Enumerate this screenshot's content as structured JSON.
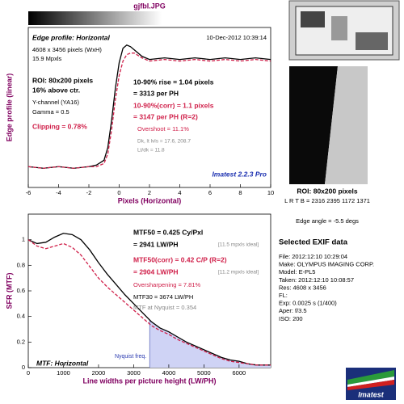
{
  "header": {
    "file": "gjfbl.JPG"
  },
  "chart_data": [
    {
      "type": "line",
      "ylabel": "Edge profile (linear)",
      "xlabel": "Pixels (Horizontal)",
      "x": [
        -6,
        -5,
        -4,
        -3,
        -2,
        -1.5,
        -1,
        -0.75,
        -0.5,
        -0.25,
        0,
        0.25,
        0.5,
        0.75,
        1,
        1.5,
        2,
        3,
        4,
        5,
        6,
        7,
        8,
        9,
        10
      ],
      "series": [
        {
          "color": "#000000",
          "style": "solid",
          "values": [
            0.13,
            0.12,
            0.13,
            0.12,
            0.13,
            0.14,
            0.17,
            0.25,
            0.42,
            0.62,
            0.78,
            0.87,
            0.89,
            0.88,
            0.86,
            0.82,
            0.8,
            0.81,
            0.8,
            0.81,
            0.8,
            0.81,
            0.8,
            0.81,
            0.8
          ]
        },
        {
          "color": "#d0204a",
          "style": "dashed",
          "values": [
            0.13,
            0.12,
            0.13,
            0.12,
            0.13,
            0.13,
            0.15,
            0.21,
            0.36,
            0.55,
            0.7,
            0.79,
            0.83,
            0.84,
            0.84,
            0.81,
            0.79,
            0.8,
            0.79,
            0.8,
            0.79,
            0.8,
            0.79,
            0.8,
            0.79
          ]
        }
      ],
      "xlim": [
        -6,
        10
      ],
      "xticks": [
        -6,
        -4,
        -2,
        0,
        2,
        4,
        6,
        8,
        10
      ],
      "ylim": [
        0,
        1
      ]
    },
    {
      "type": "line",
      "ylabel": "SFR (MTF)",
      "xlabel": "Line widths per picture height (LW/PH)",
      "x": [
        0,
        250,
        500,
        750,
        1000,
        1250,
        1500,
        1750,
        2000,
        2250,
        2500,
        2750,
        3000,
        3250,
        3500,
        3750,
        4000,
        4250,
        4500,
        4750,
        5000,
        5250,
        5500,
        5750,
        6000,
        6250,
        6500,
        6900
      ],
      "series": [
        {
          "color": "#000000",
          "style": "solid",
          "values": [
            1.0,
            0.97,
            0.98,
            1.02,
            1.05,
            1.04,
            1.0,
            0.92,
            0.82,
            0.73,
            0.65,
            0.57,
            0.5,
            0.43,
            0.36,
            0.31,
            0.28,
            0.24,
            0.2,
            0.17,
            0.14,
            0.11,
            0.08,
            0.06,
            0.05,
            0.03,
            0.02,
            0.02
          ]
        },
        {
          "color": "#d0204a",
          "style": "dashed",
          "values": [
            1.0,
            0.95,
            0.93,
            0.95,
            0.97,
            0.94,
            0.88,
            0.79,
            0.7,
            0.63,
            0.57,
            0.51,
            0.45,
            0.39,
            0.33,
            0.29,
            0.26,
            0.22,
            0.19,
            0.16,
            0.13,
            0.1,
            0.07,
            0.05,
            0.04,
            0.03,
            0.02,
            0.02
          ]
        }
      ],
      "xlim": [
        0,
        6900
      ],
      "xticks": [
        0,
        1000,
        2000,
        3000,
        4000,
        5000,
        6000
      ],
      "ylim": [
        0,
        1.2
      ],
      "yticks": [
        0,
        0.2,
        0.4,
        0.6,
        0.8,
        1
      ],
      "annotations": [
        {
          "text": "Nyquist freq.",
          "x": 3456
        }
      ]
    }
  ],
  "edge_text": [
    "Edge profile: Horizontal",
    "10-Dec-2012 10:39:14",
    "4608 x 3456 pixels (WxH)",
    "15.9 Mpxls",
    "ROI: 80x200 pixels",
    "16% above ctr.",
    "Y-channel  (YA16)",
    "Gamma = 0.5",
    "Clipping =  0.78%",
    "10-90% rise = 1.04 pixels",
    "= 3313 per PH",
    "10-90%(corr) = 1.1 pixels",
    "= 3147 per PH  (R=2)",
    "Overshoot = 11.1%",
    "Dk, lt lvls = 17.6, 208.7",
    "Lt/dk = 11.8",
    "Imatest 2.2.3 Pro"
  ],
  "mtf_text": [
    "MTF50 = 0.425 Cy/Pxl",
    "= 2941 LW/PH",
    "[11.5 mpxls ideal]",
    "MTF50(corr) = 0.42 C/P  (R=2)",
    "= 2904 LW/PH",
    "[11.2 mpxls ideal]",
    "Oversharpening = 7.81%",
    "MTF30 = 3674 LW/PH",
    "MTF at Nyquist = 0.354",
    "MTF: Horizontal"
  ],
  "side_text": [
    "ROI: 80x200 pixels",
    "L R T B = 2316 2395  1172 1371",
    "Edge angle = -5.5 degs",
    "Imatest"
  ],
  "exif": {
    "title": "Selected EXIF data",
    "rows": [
      "File:   2012:12:10 10:29:04",
      "Make:  OLYMPUS IMAGING CORP.",
      "Model:  E-PL5",
      "Taken:  2012:12:10 10:08:57",
      "Res:    4608 x 3456",
      "FL:",
      "Exp:    0.0025 s  (1/400)",
      "Aper:   f/3.5",
      "ISO:    200"
    ]
  }
}
